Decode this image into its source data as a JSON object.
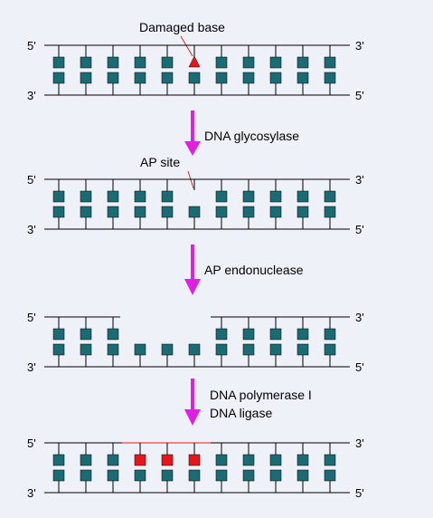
{
  "colors": {
    "background": "#eef1f7",
    "base": "#1a6b73",
    "damaged": "#e8161b",
    "repaired": "#e8161b",
    "arrow": "#e020e0",
    "strand": "#000000",
    "ap_line": "#c0302a"
  },
  "labels": {
    "damaged_base": "Damaged base",
    "ap_site": "AP site",
    "step1": "DNA glycosylase",
    "step2": "AP endonuclease",
    "step3_line1": "DNA polymerase I",
    "step3_line2": "DNA ligase"
  },
  "ends": {
    "five_prime": "5'",
    "three_prime": "3'"
  },
  "panels": [
    {
      "stage": "original",
      "top_gap": null,
      "top": [
        "n",
        "n",
        "n",
        "n",
        "n",
        "x",
        "n",
        "n",
        "n",
        "n",
        "n"
      ],
      "bottom": [
        "n",
        "n",
        "n",
        "n",
        "n",
        "n",
        "n",
        "n",
        "n",
        "n",
        "n"
      ]
    },
    {
      "stage": "ap-site",
      "top_gap": null,
      "top": [
        "n",
        "n",
        "n",
        "n",
        "n",
        "-",
        "n",
        "n",
        "n",
        "n",
        "n"
      ],
      "bottom": [
        "n",
        "n",
        "n",
        "n",
        "n",
        "n",
        "n",
        "n",
        "n",
        "n",
        "n"
      ]
    },
    {
      "stage": "excised",
      "top_gap": [
        3,
        5
      ],
      "top": [
        "n",
        "n",
        "n",
        "-",
        "-",
        "-",
        "n",
        "n",
        "n",
        "n",
        "n"
      ],
      "bottom": [
        "n",
        "n",
        "n",
        "n",
        "n",
        "n",
        "n",
        "n",
        "n",
        "n",
        "n"
      ]
    },
    {
      "stage": "repaired",
      "top_gap": null,
      "top": [
        "n",
        "n",
        "n",
        "r",
        "r",
        "r",
        "n",
        "n",
        "n",
        "n",
        "n"
      ],
      "bottom": [
        "n",
        "n",
        "n",
        "n",
        "n",
        "n",
        "n",
        "n",
        "n",
        "n",
        "n"
      ]
    }
  ]
}
